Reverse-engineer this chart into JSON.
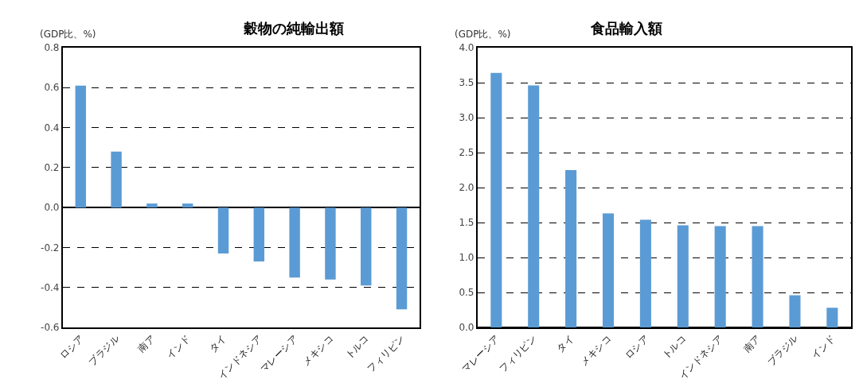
{
  "chart_data": [
    {
      "type": "bar",
      "title": "穀物の純輸出額",
      "ylabel": "(GDP比、%)",
      "categories": [
        "ロシア",
        "ブラジル",
        "南ア",
        "インド",
        "タイ",
        "インドネシア",
        "マレーシア",
        "メキシコ",
        "トルコ",
        "フィリピン"
      ],
      "values": [
        0.61,
        0.28,
        0.02,
        0.02,
        -0.23,
        -0.27,
        -0.35,
        -0.36,
        -0.39,
        -0.51
      ],
      "color": "#5b9bd5",
      "ylim": [
        -0.6,
        0.8
      ],
      "yticks": [
        {
          "value": -0.6,
          "label": "-0.6"
        },
        {
          "value": -0.4,
          "label": "-0.4"
        },
        {
          "value": -0.2,
          "label": "-0.2"
        },
        {
          "value": 0,
          "label": "0.0"
        },
        {
          "value": 0.2,
          "label": "0.2"
        },
        {
          "value": 0.4,
          "label": "0.4"
        },
        {
          "value": 0.6,
          "label": "0.6"
        },
        {
          "value": 0.8,
          "label": "0.8"
        }
      ],
      "grid": "y"
    },
    {
      "type": "bar",
      "title": "食品輸入額",
      "ylabel": "(GDP比、%)",
      "categories": [
        "マレーシア",
        "フィリピン",
        "タイ",
        "メキシコ",
        "ロシア",
        "トルコ",
        "インドネシア",
        "南ア",
        "ブラジル",
        "インド"
      ],
      "values": [
        3.64,
        3.46,
        2.25,
        1.63,
        1.54,
        1.46,
        1.45,
        1.45,
        0.46,
        0.28
      ],
      "color": "#5b9bd5",
      "ylim": [
        0,
        4
      ],
      "yticks": [
        {
          "value": 0,
          "label": "0.0"
        },
        {
          "value": 0.5,
          "label": "0.5"
        },
        {
          "value": 1,
          "label": "1.0"
        },
        {
          "value": 1.5,
          "label": "1.5"
        },
        {
          "value": 2,
          "label": "2.0"
        },
        {
          "value": 2.5,
          "label": "2.5"
        },
        {
          "value": 3,
          "label": "3.0"
        },
        {
          "value": 3.5,
          "label": "3.5"
        },
        {
          "value": 4,
          "label": "4.0"
        }
      ],
      "grid": "y"
    }
  ]
}
